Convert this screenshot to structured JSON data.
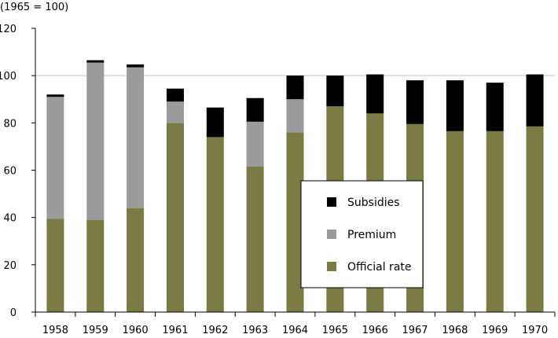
{
  "chart_data": {
    "type": "bar",
    "stacked": true,
    "unit_note": "(1965 = 100)",
    "categories": [
      "1958",
      "1959",
      "1960",
      "1961",
      "1962",
      "1963",
      "1964",
      "1965",
      "1966",
      "1967",
      "1968",
      "1969",
      "1970"
    ],
    "series": [
      {
        "name": "Official rate",
        "color": "#7a7a45",
        "values": [
          39.5,
          39,
          44,
          80,
          74,
          61.5,
          76,
          87,
          84,
          79.5,
          76.5,
          76.5,
          78.5
        ]
      },
      {
        "name": "Premium",
        "color": "#9b9b9b",
        "values": [
          51.5,
          66.5,
          59.5,
          9,
          0,
          19,
          14,
          0,
          0,
          0,
          0,
          0,
          0
        ]
      },
      {
        "name": "Subsidies",
        "color": "#000000",
        "values": [
          1,
          1,
          1.2,
          5.5,
          12.5,
          10,
          10,
          13,
          16.5,
          18.5,
          21.5,
          20.5,
          22
        ]
      }
    ],
    "ylim": [
      0,
      120
    ],
    "yticks": [
      0,
      20,
      40,
      60,
      80,
      100,
      120
    ],
    "reference_line": 100,
    "legend": {
      "position": "center-right",
      "order": [
        "Subsidies",
        "Premium",
        "Official rate"
      ]
    }
  }
}
